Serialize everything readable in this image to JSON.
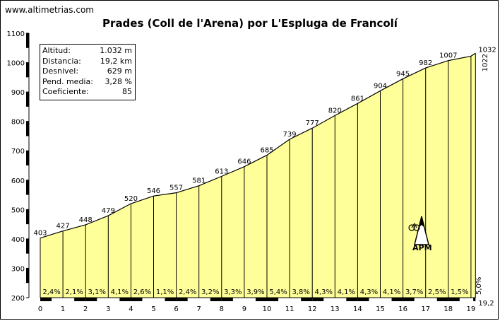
{
  "site": "www.altimetrias.com",
  "title": "Prades (Coll de l'Arena) por L'Espluga de Francolí",
  "info": [
    {
      "label": "Altitud:",
      "value": "1.032 m"
    },
    {
      "label": "Distancia:",
      "value": "19,2 km"
    },
    {
      "label": "Desnivel:",
      "value": "629 m"
    },
    {
      "label": "Pend. media:",
      "value": "3,28 %"
    },
    {
      "label": "Coeficiente:",
      "value": "85"
    }
  ],
  "logo": "APM",
  "colors": {
    "fill": "#ffff99",
    "line": "#000000",
    "background": "#ffffff"
  },
  "chart_data": {
    "type": "area",
    "x": [
      0,
      1,
      2,
      3,
      4,
      5,
      6,
      7,
      8,
      9,
      10,
      11,
      12,
      13,
      14,
      15,
      16,
      17,
      18,
      19,
      19.2
    ],
    "y": [
      403,
      427,
      448,
      479,
      520,
      546,
      557,
      581,
      613,
      646,
      685,
      739,
      777,
      820,
      861,
      904,
      945,
      982,
      1007,
      1022,
      1032
    ],
    "point_labels": [
      "403",
      "427",
      "448",
      "479",
      "520",
      "546",
      "557",
      "581",
      "613",
      "646",
      "685",
      "739",
      "777",
      "820",
      "861",
      "904",
      "945",
      "982",
      "1007",
      "1022",
      "1032"
    ],
    "gradients": [
      "2,4%",
      "2,1%",
      "3,1%",
      "4,1%",
      "2,6%",
      "1,1%",
      "2,4%",
      "3,2%",
      "3,3%",
      "3,9%",
      "5,4%",
      "3,8%",
      "4,3%",
      "4,1%",
      "4,3%",
      "4,1%",
      "3,7%",
      "2,5%",
      "1,5%",
      "5,0%"
    ],
    "x_tick_labels": [
      "0",
      "1",
      "2",
      "3",
      "4",
      "5",
      "6",
      "7",
      "8",
      "9",
      "10",
      "11",
      "12",
      "13",
      "14",
      "15",
      "16",
      "17",
      "18",
      "19"
    ],
    "x_end_label": "19,2",
    "y_tick_labels": [
      "200",
      "300",
      "400",
      "500",
      "600",
      "700",
      "800",
      "900",
      "1000",
      "1100"
    ],
    "y_ticks": [
      200,
      300,
      400,
      500,
      600,
      700,
      800,
      900,
      1000,
      1100
    ],
    "xlim": [
      0,
      19.2
    ],
    "ylim": [
      200,
      1100
    ],
    "grid": false
  }
}
